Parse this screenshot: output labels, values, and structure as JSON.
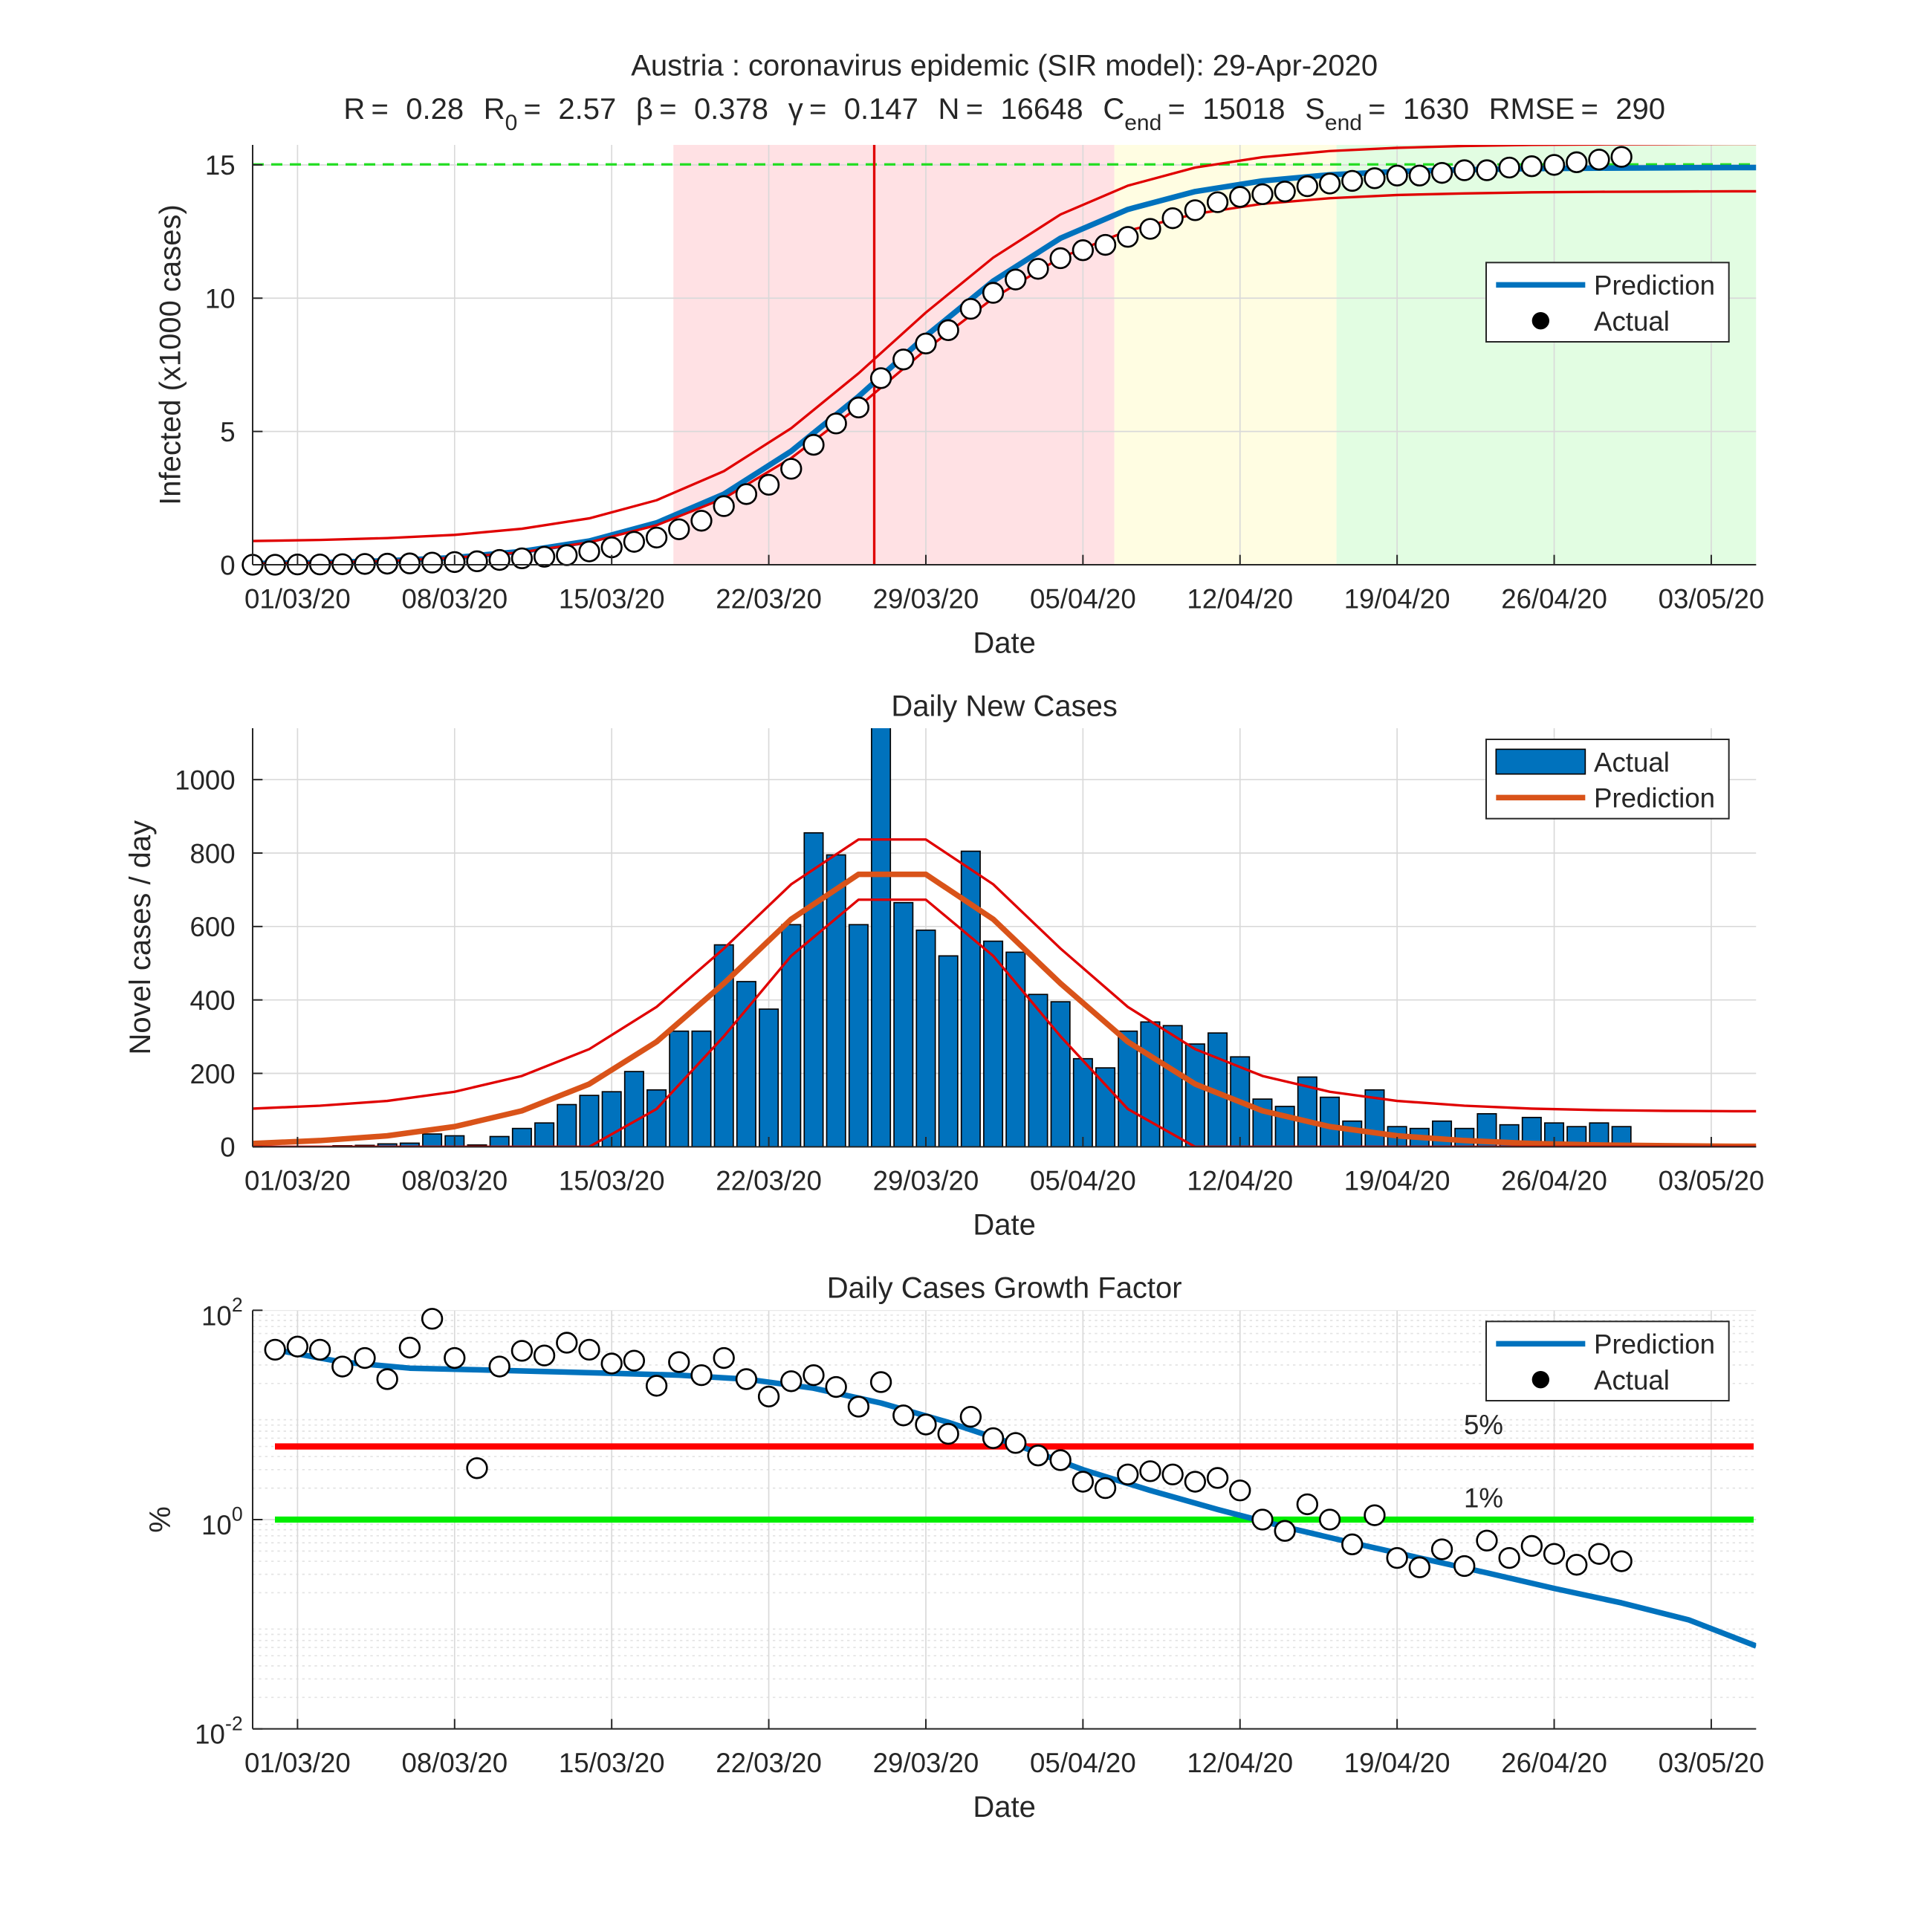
{
  "chart_data": [
    {
      "type": "line",
      "title": "Austria : coronavirus epidemic (SIR model): 29-Apr-2020",
      "parameters": [
        {
          "name": "R",
          "sep": "=",
          "value": 0.28
        },
        {
          "name": "R",
          "sub": "0",
          "sep": "=",
          "value": 2.57
        },
        {
          "name": "β",
          "sep": "=",
          "value": 0.378
        },
        {
          "name": "γ",
          "sep": "=",
          "value": 0.147
        },
        {
          "name": "N",
          "sep": "=",
          "value": 16648
        },
        {
          "name": "C",
          "sub": "end",
          "sep": "=",
          "value": 15018
        },
        {
          "name": "S",
          "sub": "end",
          "sep": "=",
          "value": 1630
        },
        {
          "name": "RMSE",
          "sep": "=",
          "value": 290
        }
      ],
      "xlabel": "Date",
      "ylabel": "Infected (x1000 cases)",
      "xlim": [
        -2,
        65
      ],
      "xticks": [
        {
          "value": 0,
          "label": "01/03/20"
        },
        {
          "value": 7,
          "label": "08/03/20"
        },
        {
          "value": 14,
          "label": "15/03/20"
        },
        {
          "value": 21,
          "label": "22/03/20"
        },
        {
          "value": 28,
          "label": "29/03/20"
        },
        {
          "value": 35,
          "label": "05/04/20"
        },
        {
          "value": 42,
          "label": "12/04/20"
        },
        {
          "value": 49,
          "label": "19/04/20"
        },
        {
          "value": 56,
          "label": "26/04/20"
        },
        {
          "value": 63,
          "label": "03/05/20"
        }
      ],
      "ylim": [
        0,
        15.75
      ],
      "yticks": [
        0,
        5,
        10,
        15
      ],
      "grid": true,
      "legend": "right",
      "regions": [
        {
          "from": 16.75,
          "to": 36.4,
          "color": "#ffe1e4"
        },
        {
          "from": 36.4,
          "to": 46.3,
          "color": "#fffde2"
        },
        {
          "from": 46.3,
          "to": 65,
          "color": "#e2fde2"
        }
      ],
      "vline": {
        "x": 25.7,
        "color": "#e00000"
      },
      "hline": {
        "value": 15.018,
        "color": "#22dd22"
      },
      "series": [
        {
          "name": "Prediction",
          "type": "line",
          "color": "#0072bd",
          "x": [
            -2,
            1,
            4,
            7,
            10,
            13,
            16,
            19,
            22,
            25,
            28,
            31,
            34,
            37,
            40,
            43,
            46,
            49,
            52,
            55,
            58,
            61,
            64,
            65
          ],
          "values": [
            0.044,
            0.082,
            0.15,
            0.27,
            0.5,
            0.89,
            1.57,
            2.65,
            4.26,
            6.31,
            8.58,
            10.64,
            12.25,
            13.33,
            14.0,
            14.4,
            14.63,
            14.75,
            14.82,
            14.86,
            14.88,
            14.89,
            14.9,
            14.9
          ]
        },
        {
          "name": "Actual",
          "type": "scatter",
          "color": "#000000",
          "x": [
            -2,
            -1,
            0,
            1,
            2,
            3,
            4,
            5,
            6,
            7,
            8,
            9,
            10,
            11,
            12,
            13,
            14,
            15,
            16,
            17,
            18,
            19,
            20,
            21,
            22,
            23,
            24,
            25,
            26,
            27,
            28,
            29,
            30,
            31,
            32,
            33,
            34,
            35,
            36,
            37,
            38,
            39,
            40,
            41,
            42,
            43,
            44,
            45,
            46,
            47,
            48,
            49,
            50,
            51,
            52,
            53,
            54,
            55,
            56,
            57,
            58,
            59
          ],
          "values": [
            0,
            0,
            0.01,
            0.01,
            0.02,
            0.03,
            0.04,
            0.05,
            0.08,
            0.1,
            0.13,
            0.18,
            0.24,
            0.3,
            0.36,
            0.5,
            0.65,
            0.86,
            1.02,
            1.33,
            1.65,
            2.2,
            2.65,
            3.0,
            3.6,
            4.5,
            5.3,
            5.9,
            7.0,
            7.7,
            8.3,
            8.8,
            9.6,
            10.2,
            10.7,
            11.1,
            11.5,
            11.8,
            12.0,
            12.3,
            12.6,
            13.0,
            13.3,
            13.6,
            13.8,
            13.9,
            14.0,
            14.2,
            14.3,
            14.4,
            14.5,
            14.6,
            14.6,
            14.7,
            14.8,
            14.8,
            14.9,
            14.95,
            15.0,
            15.1,
            15.2,
            15.3
          ]
        },
        {
          "type": "line",
          "color": "#e00000",
          "x": [
            -2,
            1,
            4,
            7,
            10,
            13,
            16,
            19,
            22,
            25,
            28,
            31,
            34,
            37,
            40,
            43,
            46,
            49,
            52,
            55,
            58,
            61,
            64,
            65
          ],
          "values": [
            0.89,
            0.93,
            1.0,
            1.12,
            1.35,
            1.74,
            2.42,
            3.51,
            5.12,
            7.18,
            9.46,
            11.52,
            13.14,
            14.22,
            14.9,
            15.29,
            15.52,
            15.64,
            15.71,
            15.75,
            15.77,
            15.78,
            15.79,
            15.79
          ]
        },
        {
          "type": "line",
          "color": "#e00000",
          "x": [
            -2,
            1,
            4,
            7,
            10,
            13,
            16,
            19,
            22,
            25,
            28,
            31,
            34,
            37,
            40,
            43,
            46,
            49,
            52,
            55,
            58,
            61,
            64,
            65
          ],
          "values": [
            0.04,
            0.08,
            0.14,
            0.26,
            0.47,
            0.84,
            1.48,
            2.49,
            4.0,
            5.93,
            8.07,
            10.0,
            11.52,
            12.53,
            13.16,
            13.54,
            13.75,
            13.87,
            13.93,
            13.97,
            13.99,
            14.0,
            14.01,
            14.01
          ]
        }
      ]
    },
    {
      "type": "bar",
      "title": "Daily New Cases",
      "xlabel": "Date",
      "ylabel": "Novel cases / day",
      "xlim": [
        -2,
        65
      ],
      "xticks": [
        {
          "value": 0,
          "label": "01/03/20"
        },
        {
          "value": 7,
          "label": "08/03/20"
        },
        {
          "value": 14,
          "label": "15/03/20"
        },
        {
          "value": 21,
          "label": "22/03/20"
        },
        {
          "value": 28,
          "label": "29/03/20"
        },
        {
          "value": 35,
          "label": "05/04/20"
        },
        {
          "value": 42,
          "label": "12/04/20"
        },
        {
          "value": 49,
          "label": "19/04/20"
        },
        {
          "value": 56,
          "label": "26/04/20"
        },
        {
          "value": 63,
          "label": "03/05/20"
        }
      ],
      "ylim": [
        0,
        1140
      ],
      "yticks": [
        0,
        200,
        400,
        600,
        800,
        1000
      ],
      "grid": true,
      "legend": "upper right",
      "series": [
        {
          "name": "Actual",
          "type": "bar",
          "color": "#0072bd",
          "x": [
            -2,
            -1,
            0,
            1,
            2,
            3,
            4,
            5,
            6,
            7,
            8,
            9,
            10,
            11,
            12,
            13,
            14,
            15,
            16,
            17,
            18,
            19,
            20,
            21,
            22,
            23,
            24,
            25,
            26,
            27,
            28,
            29,
            30,
            31,
            32,
            33,
            34,
            35,
            36,
            37,
            38,
            39,
            40,
            41,
            42,
            43,
            44,
            45,
            46,
            47,
            48,
            49,
            50,
            51,
            52,
            53,
            54,
            55,
            56,
            57,
            58,
            59
          ],
          "values": [
            0,
            0,
            1,
            1,
            3,
            4,
            8,
            10,
            35,
            30,
            5,
            28,
            50,
            65,
            115,
            140,
            150,
            205,
            155,
            315,
            315,
            550,
            450,
            375,
            605,
            855,
            795,
            605,
            1150,
            665,
            590,
            520,
            805,
            560,
            530,
            415,
            395,
            240,
            215,
            315,
            340,
            330,
            280,
            310,
            245,
            130,
            110,
            190,
            135,
            70,
            155,
            55,
            50,
            70,
            50,
            90,
            60,
            80,
            65,
            55,
            65,
            55
          ]
        },
        {
          "name": "Prediction",
          "type": "line",
          "color": "#d95319",
          "x": [
            -2,
            1,
            4,
            7,
            10,
            13,
            16,
            19,
            22,
            25,
            28,
            31,
            34,
            37,
            40,
            43,
            46,
            49,
            52,
            55,
            58,
            61,
            64,
            65
          ],
          "values": [
            9,
            17,
            30,
            55,
            98,
            171,
            286,
            445,
            620,
            742,
            742,
            620,
            445,
            286,
            171,
            98,
            55,
            30,
            17,
            9,
            5,
            3,
            1.5,
            1.3
          ]
        },
        {
          "type": "line",
          "color": "#e00000",
          "x": [
            -2,
            1,
            4,
            7,
            10,
            13,
            16,
            19,
            22,
            25,
            28,
            31,
            34,
            37,
            40,
            43,
            46,
            49,
            52,
            55,
            58,
            61,
            64,
            65
          ],
          "values": [
            104,
            112,
            125,
            150,
            193,
            266,
            381,
            540,
            715,
            837,
            837,
            715,
            540,
            381,
            266,
            193,
            150,
            125,
            112,
            104,
            100,
            98,
            97,
            97
          ]
        },
        {
          "type": "line",
          "color": "#e00000",
          "x": [
            -2,
            1,
            4,
            7,
            10,
            13,
            16,
            19,
            22,
            25,
            28,
            31,
            34,
            37,
            40,
            43,
            46,
            49,
            52,
            55,
            58,
            61,
            64,
            65
          ],
          "values": [
            0,
            0,
            0,
            0,
            0,
            0,
            103,
            301,
            520,
            673,
            673,
            520,
            301,
            103,
            0,
            0,
            0,
            0,
            0,
            0,
            0,
            0,
            0,
            0
          ]
        }
      ]
    },
    {
      "type": "line",
      "title": "Daily Cases Growth Factor",
      "xlabel": "Date",
      "ylabel": "%",
      "yscale": "log",
      "xlim": [
        -2,
        65
      ],
      "xticks": [
        {
          "value": 0,
          "label": "01/03/20"
        },
        {
          "value": 7,
          "label": "08/03/20"
        },
        {
          "value": 14,
          "label": "15/03/20"
        },
        {
          "value": 21,
          "label": "22/03/20"
        },
        {
          "value": 28,
          "label": "29/03/20"
        },
        {
          "value": 35,
          "label": "05/04/20"
        },
        {
          "value": 42,
          "label": "12/04/20"
        },
        {
          "value": 49,
          "label": "19/04/20"
        },
        {
          "value": 56,
          "label": "26/04/20"
        },
        {
          "value": 63,
          "label": "03/05/20"
        }
      ],
      "ylim": [
        0.01,
        100
      ],
      "yticks": [
        {
          "value": 0.01,
          "label": "10",
          "power": "-2"
        },
        {
          "value": 1,
          "label": "10",
          "power": "0"
        },
        {
          "value": 100,
          "label": "10",
          "power": "2"
        }
      ],
      "grid": true,
      "minor_grid": true,
      "legend": "upper right",
      "hlines": [
        {
          "value": 5,
          "label": "5%",
          "color": "#ff0000"
        },
        {
          "value": 1,
          "label": "1%",
          "color": "#00ee00"
        }
      ],
      "series": [
        {
          "name": "Prediction",
          "type": "line",
          "color": "#0072bd",
          "x": [
            -1,
            2,
            5,
            8,
            11,
            14,
            17,
            20,
            23,
            26,
            29,
            32,
            35,
            38,
            41,
            44,
            47,
            50,
            53,
            56,
            59,
            62,
            65
          ],
          "values": [
            42,
            32,
            28,
            27,
            26,
            25,
            24,
            22,
            18,
            13,
            8.5,
            5.2,
            3.0,
            1.9,
            1.25,
            0.85,
            0.6,
            0.43,
            0.31,
            0.22,
            0.16,
            0.11,
            0.062
          ]
        },
        {
          "name": "Actual",
          "type": "scatter",
          "color": "#000000",
          "x": [
            -1,
            0,
            1,
            2,
            3,
            4,
            5,
            6,
            7,
            8,
            9,
            10,
            11,
            12,
            13,
            14,
            15,
            16,
            17,
            18,
            19,
            20,
            21,
            22,
            23,
            24,
            25,
            26,
            27,
            28,
            29,
            30,
            31,
            32,
            33,
            34,
            35,
            36,
            37,
            38,
            39,
            40,
            41,
            42,
            43,
            44,
            45,
            46,
            47,
            48,
            49,
            50,
            51,
            52,
            53,
            54,
            55,
            56,
            57,
            58,
            59
          ],
          "values": [
            42,
            45,
            42,
            29,
            35,
            22,
            44,
            83,
            35,
            3.1,
            29,
            41,
            37,
            49,
            42,
            31,
            33,
            19,
            32,
            24,
            35,
            22,
            15,
            21,
            24,
            18.5,
            12,
            20.6,
            9.9,
            8.1,
            6.6,
            9.6,
            6.0,
            5.4,
            4.1,
            3.7,
            2.3,
            2.0,
            2.7,
            2.9,
            2.7,
            2.3,
            2.5,
            1.9,
            1.0,
            0.78,
            1.4,
            1.0,
            0.58,
            1.1,
            0.43,
            0.35,
            0.52,
            0.36,
            0.63,
            0.43,
            0.56,
            0.47,
            0.37,
            0.47,
            0.4
          ]
        }
      ]
    }
  ]
}
